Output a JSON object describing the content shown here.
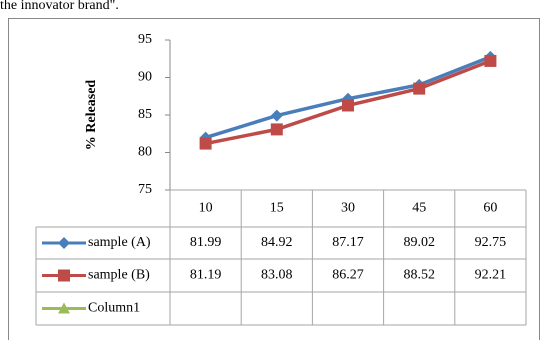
{
  "caption": "the innovator brand\".",
  "chart_data": {
    "type": "line",
    "ylabel": "% Released",
    "categories": [
      "10",
      "15",
      "30",
      "45",
      "60"
    ],
    "series": [
      {
        "name": "sample (A)",
        "color": "#4a7ebb",
        "marker": "diamond",
        "values": [
          81.99,
          84.92,
          87.17,
          89.02,
          92.75
        ]
      },
      {
        "name": "sample (B)",
        "color": "#be4b48",
        "marker": "square",
        "values": [
          81.19,
          83.08,
          86.27,
          88.52,
          92.21
        ]
      },
      {
        "name": "Column1",
        "color": "#9bbb59",
        "marker": "triangle",
        "values": [
          null,
          null,
          null,
          null,
          null
        ]
      }
    ],
    "ylim": [
      75,
      95
    ],
    "yticks": [
      75,
      80,
      85,
      90,
      95
    ],
    "data_table": true
  }
}
